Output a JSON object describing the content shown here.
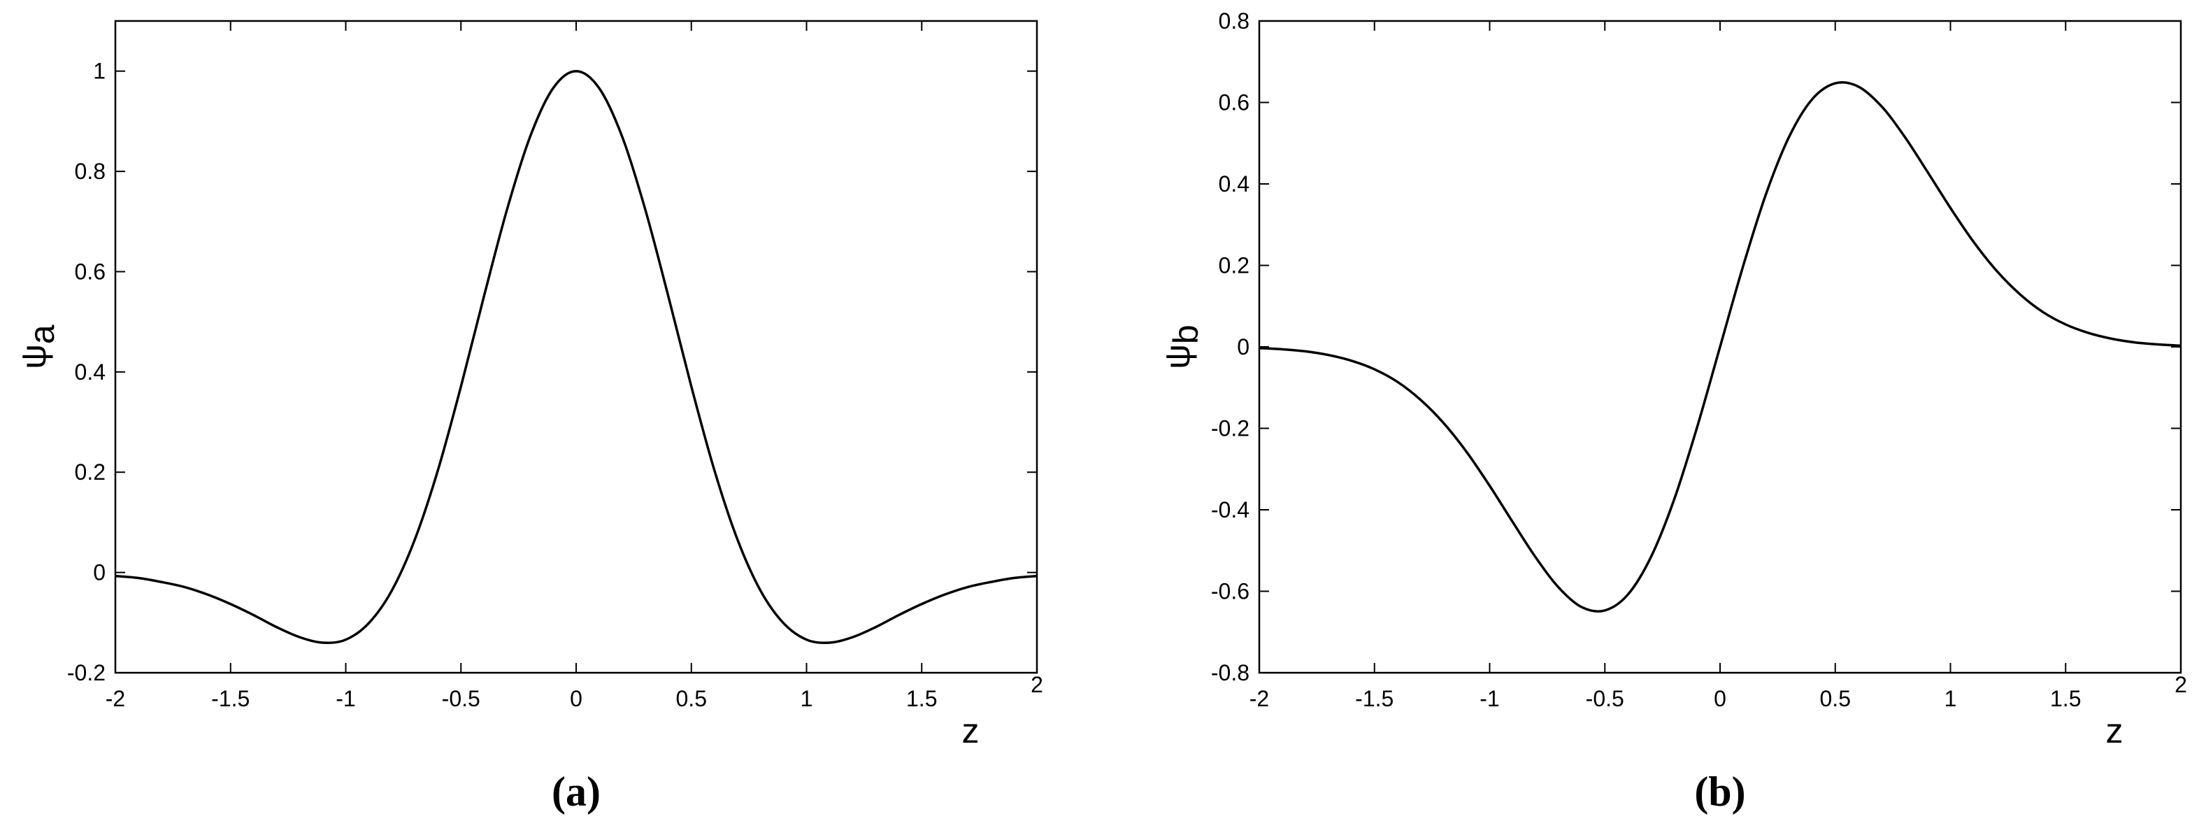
{
  "chart_data": [
    {
      "type": "line",
      "ylabel_symbol": "ψ",
      "ylabel_sub": "a",
      "xlabel": "z",
      "caption": "(a)",
      "color": "#000000",
      "x": [
        -2,
        -1.9,
        -1.8,
        -1.7,
        -1.6,
        -1.5,
        -1.4,
        -1.3,
        -1.2,
        -1.1,
        -1,
        -0.9,
        -0.8,
        -0.7,
        -0.6,
        -0.5,
        -0.4,
        -0.3,
        -0.2,
        -0.1,
        0,
        0.1,
        0.2,
        0.3,
        0.4,
        0.5,
        0.6,
        0.7,
        0.8,
        0.9,
        1,
        1.1,
        1.2,
        1.3,
        1.4,
        1.5,
        1.6,
        1.7,
        1.8,
        1.9,
        2
      ],
      "values": [
        -0.007,
        -0.011,
        -0.019,
        -0.029,
        -0.044,
        -0.063,
        -0.085,
        -0.109,
        -0.129,
        -0.14,
        -0.134,
        -0.101,
        -0.036,
        0.066,
        0.204,
        0.371,
        0.551,
        0.724,
        0.869,
        0.966,
        1,
        0.966,
        0.869,
        0.724,
        0.551,
        0.371,
        0.204,
        0.066,
        -0.036,
        -0.101,
        -0.134,
        -0.14,
        -0.129,
        -0.109,
        -0.085,
        -0.063,
        -0.044,
        -0.029,
        -0.019,
        -0.011,
        -0.007
      ],
      "xlim": [
        -2,
        2
      ],
      "xticks": [
        -2,
        -1.5,
        -1,
        -0.5,
        0,
        0.5,
        1,
        1.5,
        2
      ],
      "ylim": [
        -0.2,
        1.1
      ],
      "yticks": [
        -0.2,
        0,
        0.2,
        0.4,
        0.6,
        0.8,
        1
      ]
    },
    {
      "type": "line",
      "ylabel_symbol": "ψ",
      "ylabel_sub": "b",
      "xlabel": "z",
      "caption": "(b)",
      "color": "#000000",
      "x": [
        -2,
        -1.9,
        -1.8,
        -1.7,
        -1.6,
        -1.5,
        -1.4,
        -1.3,
        -1.2,
        -1.1,
        -1,
        -0.9,
        -0.8,
        -0.7,
        -0.6,
        -0.5,
        -0.4,
        -0.3,
        -0.2,
        -0.1,
        0,
        0.1,
        0.2,
        0.3,
        0.4,
        0.5,
        0.6,
        0.7,
        0.8,
        0.9,
        1,
        1.1,
        1.2,
        1.3,
        1.4,
        1.5,
        1.6,
        1.7,
        1.8,
        1.9,
        2
      ],
      "values": [
        -0.003,
        -0.006,
        -0.011,
        -0.02,
        -0.034,
        -0.055,
        -0.086,
        -0.13,
        -0.187,
        -0.258,
        -0.341,
        -0.43,
        -0.517,
        -0.591,
        -0.639,
        -0.647,
        -0.608,
        -0.516,
        -0.376,
        -0.198,
        0,
        0.198,
        0.376,
        0.516,
        0.608,
        0.647,
        0.639,
        0.591,
        0.517,
        0.43,
        0.341,
        0.258,
        0.187,
        0.13,
        0.086,
        0.055,
        0.034,
        0.02,
        0.011,
        0.006,
        0.003
      ],
      "xlim": [
        -2,
        2
      ],
      "xticks": [
        -2,
        -1.5,
        -1,
        -0.5,
        0,
        0.5,
        1,
        1.5,
        2
      ],
      "ylim": [
        -0.8,
        0.8
      ],
      "yticks": [
        -0.8,
        -0.6,
        -0.4,
        -0.2,
        0,
        0.2,
        0.4,
        0.6,
        0.8
      ]
    }
  ]
}
